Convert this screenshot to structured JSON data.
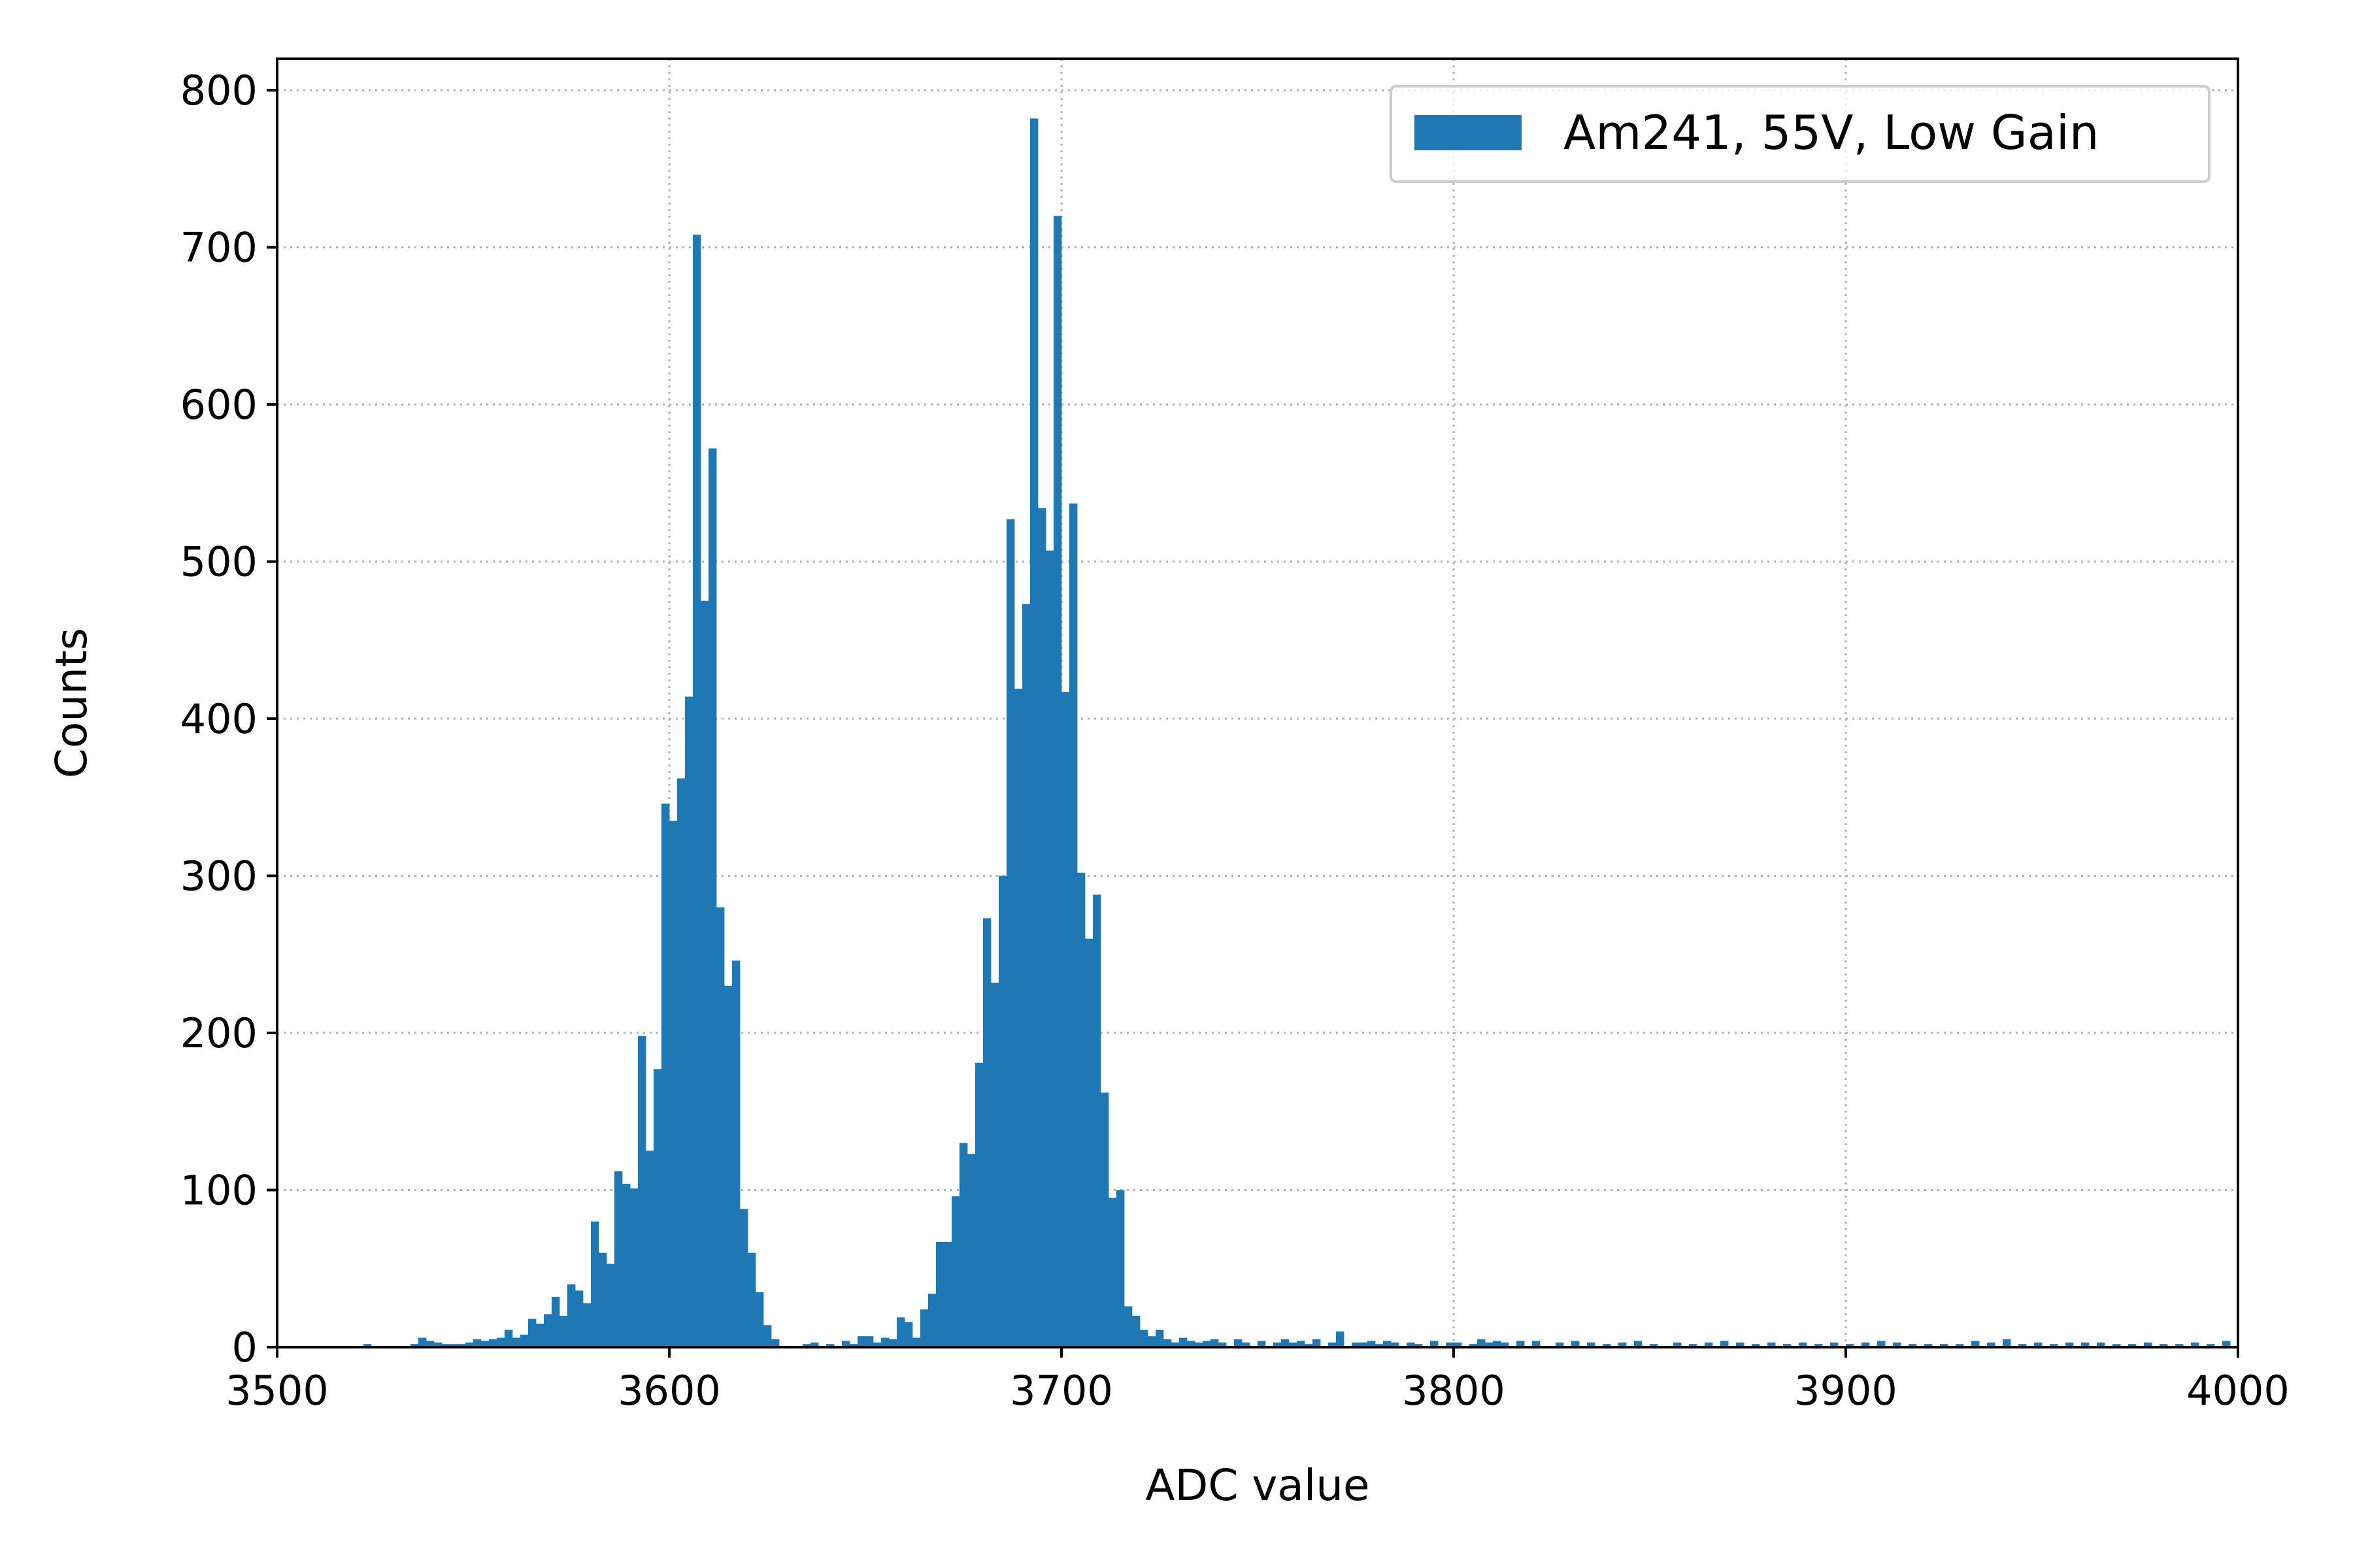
{
  "chart_data": {
    "type": "bar",
    "title": "",
    "xlabel": "ADC value",
    "ylabel": "Counts",
    "xlim": [
      3500,
      4000
    ],
    "ylim": [
      0,
      820
    ],
    "xticks": [
      3500,
      3600,
      3700,
      3800,
      3900,
      4000
    ],
    "yticks": [
      0,
      100,
      200,
      300,
      400,
      500,
      600,
      700,
      800
    ],
    "grid": true,
    "legend_position": "top-right",
    "color": "#1f77b4",
    "bin_width": 2,
    "series": [
      {
        "name": "Am241, 55V, Low Gain",
        "bins": [
          [
            3522,
            2
          ],
          [
            3534,
            2
          ],
          [
            3536,
            6
          ],
          [
            3538,
            4
          ],
          [
            3540,
            3
          ],
          [
            3542,
            2
          ],
          [
            3544,
            2
          ],
          [
            3546,
            2
          ],
          [
            3548,
            3
          ],
          [
            3550,
            5
          ],
          [
            3552,
            4
          ],
          [
            3554,
            5
          ],
          [
            3556,
            6
          ],
          [
            3558,
            11
          ],
          [
            3560,
            6
          ],
          [
            3562,
            8
          ],
          [
            3564,
            18
          ],
          [
            3566,
            15
          ],
          [
            3568,
            21
          ],
          [
            3570,
            32
          ],
          [
            3572,
            20
          ],
          [
            3574,
            40
          ],
          [
            3576,
            36
          ],
          [
            3578,
            28
          ],
          [
            3580,
            80
          ],
          [
            3582,
            60
          ],
          [
            3584,
            53
          ],
          [
            3586,
            112
          ],
          [
            3588,
            104
          ],
          [
            3590,
            101
          ],
          [
            3592,
            198
          ],
          [
            3594,
            125
          ],
          [
            3596,
            177
          ],
          [
            3598,
            346
          ],
          [
            3600,
            335
          ],
          [
            3602,
            362
          ],
          [
            3604,
            414
          ],
          [
            3606,
            708
          ],
          [
            3608,
            475
          ],
          [
            3610,
            572
          ],
          [
            3612,
            280
          ],
          [
            3614,
            230
          ],
          [
            3616,
            246
          ],
          [
            3618,
            88
          ],
          [
            3620,
            60
          ],
          [
            3622,
            35
          ],
          [
            3624,
            14
          ],
          [
            3626,
            5
          ],
          [
            3634,
            2
          ],
          [
            3636,
            3
          ],
          [
            3640,
            2
          ],
          [
            3644,
            4
          ],
          [
            3646,
            2
          ],
          [
            3648,
            7
          ],
          [
            3650,
            7
          ],
          [
            3652,
            3
          ],
          [
            3654,
            6
          ],
          [
            3656,
            5
          ],
          [
            3658,
            19
          ],
          [
            3660,
            16
          ],
          [
            3662,
            6
          ],
          [
            3664,
            24
          ],
          [
            3666,
            34
          ],
          [
            3668,
            67
          ],
          [
            3670,
            67
          ],
          [
            3672,
            96
          ],
          [
            3674,
            130
          ],
          [
            3676,
            123
          ],
          [
            3678,
            181
          ],
          [
            3680,
            273
          ],
          [
            3682,
            232
          ],
          [
            3684,
            300
          ],
          [
            3686,
            527
          ],
          [
            3688,
            419
          ],
          [
            3690,
            473
          ],
          [
            3692,
            782
          ],
          [
            3694,
            534
          ],
          [
            3696,
            507
          ],
          [
            3698,
            720
          ],
          [
            3700,
            417
          ],
          [
            3702,
            537
          ],
          [
            3704,
            302
          ],
          [
            3706,
            260
          ],
          [
            3708,
            288
          ],
          [
            3710,
            162
          ],
          [
            3712,
            95
          ],
          [
            3714,
            100
          ],
          [
            3716,
            26
          ],
          [
            3718,
            20
          ],
          [
            3720,
            11
          ],
          [
            3722,
            7
          ],
          [
            3724,
            11
          ],
          [
            3726,
            5
          ],
          [
            3728,
            3
          ],
          [
            3730,
            6
          ],
          [
            3732,
            4
          ],
          [
            3734,
            3
          ],
          [
            3736,
            4
          ],
          [
            3738,
            5
          ],
          [
            3740,
            3
          ],
          [
            3744,
            5
          ],
          [
            3746,
            3
          ],
          [
            3750,
            4
          ],
          [
            3754,
            3
          ],
          [
            3756,
            5
          ],
          [
            3758,
            3
          ],
          [
            3760,
            4
          ],
          [
            3762,
            2
          ],
          [
            3764,
            5
          ],
          [
            3768,
            3
          ],
          [
            3770,
            10
          ],
          [
            3774,
            3
          ],
          [
            3776,
            3
          ],
          [
            3778,
            4
          ],
          [
            3780,
            2
          ],
          [
            3782,
            4
          ],
          [
            3784,
            3
          ],
          [
            3788,
            3
          ],
          [
            3790,
            2
          ],
          [
            3794,
            4
          ],
          [
            3798,
            3
          ],
          [
            3800,
            3
          ],
          [
            3804,
            2
          ],
          [
            3806,
            5
          ],
          [
            3808,
            3
          ],
          [
            3810,
            4
          ],
          [
            3812,
            3
          ],
          [
            3816,
            4
          ],
          [
            3820,
            4
          ],
          [
            3826,
            3
          ],
          [
            3830,
            4
          ],
          [
            3834,
            3
          ],
          [
            3838,
            2
          ],
          [
            3842,
            3
          ],
          [
            3846,
            4
          ],
          [
            3850,
            2
          ],
          [
            3856,
            3
          ],
          [
            3860,
            2
          ],
          [
            3864,
            3
          ],
          [
            3868,
            4
          ],
          [
            3872,
            3
          ],
          [
            3876,
            2
          ],
          [
            3880,
            3
          ],
          [
            3884,
            2
          ],
          [
            3888,
            3
          ],
          [
            3892,
            2
          ],
          [
            3896,
            3
          ],
          [
            3900,
            2
          ],
          [
            3904,
            3
          ],
          [
            3908,
            4
          ],
          [
            3912,
            3
          ],
          [
            3916,
            2
          ],
          [
            3920,
            2
          ],
          [
            3924,
            2
          ],
          [
            3928,
            2
          ],
          [
            3932,
            4
          ],
          [
            3936,
            3
          ],
          [
            3940,
            5
          ],
          [
            3944,
            2
          ],
          [
            3948,
            3
          ],
          [
            3952,
            2
          ],
          [
            3956,
            3
          ],
          [
            3960,
            3
          ],
          [
            3964,
            3
          ],
          [
            3968,
            2
          ],
          [
            3972,
            2
          ],
          [
            3976,
            3
          ],
          [
            3980,
            2
          ],
          [
            3984,
            2
          ],
          [
            3988,
            3
          ],
          [
            3992,
            2
          ],
          [
            3996,
            4
          ]
        ]
      }
    ]
  }
}
